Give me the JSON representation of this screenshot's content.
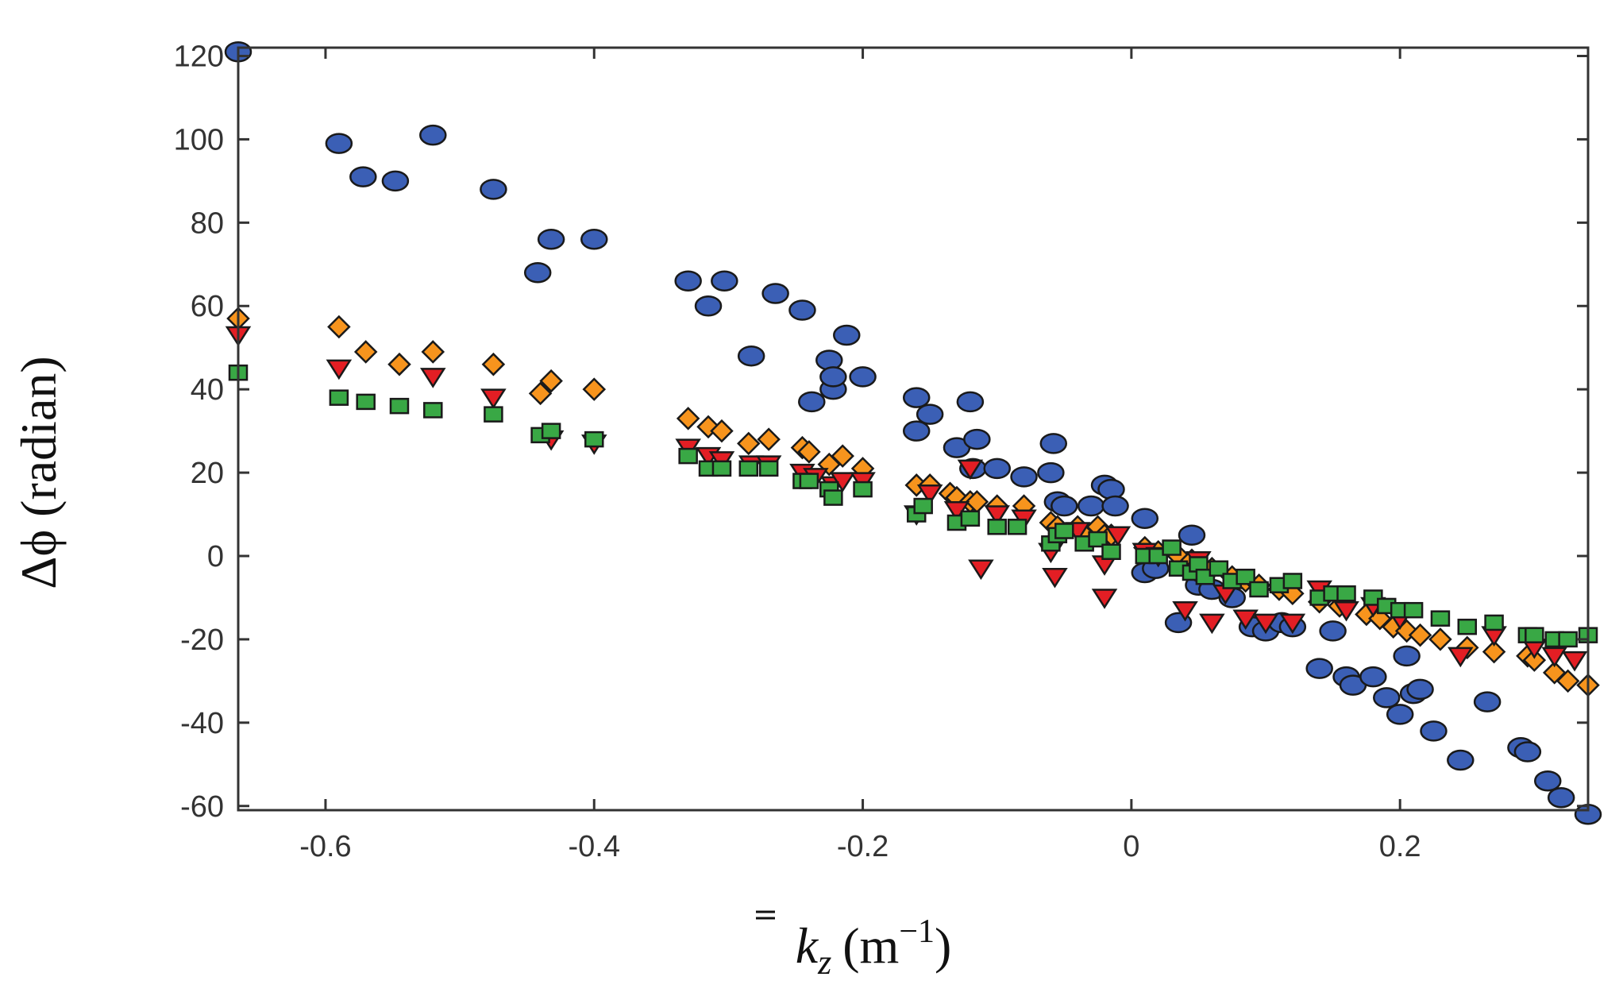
{
  "chart_data": {
    "type": "scatter",
    "title": "",
    "xlabel": "k̄̄z (m⁻¹)",
    "xlabel_parts": {
      "symbol": "k",
      "subscript": "z",
      "unit_open": "(m",
      "exponent": "−1",
      "unit_close": ")"
    },
    "ylabel": "Δϕ (radian)",
    "xlim": [
      -0.665,
      0.34
    ],
    "ylim": [
      -61,
      122
    ],
    "xticks": [
      -0.6,
      -0.4,
      -0.2,
      0,
      0.2
    ],
    "xtick_labels": [
      "-0.6",
      "-0.4",
      "-0.2",
      "0",
      "0.2"
    ],
    "yticks": [
      -60,
      -40,
      -20,
      0,
      20,
      40,
      60,
      80,
      100,
      120
    ],
    "ytick_labels": [
      "-60",
      "-40",
      "-20",
      "0",
      "20",
      "40",
      "60",
      "80",
      "100",
      "120"
    ],
    "grid": false,
    "legend": "none",
    "series": [
      {
        "name": "circle",
        "marker": "circle",
        "color": "#3b5fb5",
        "x": [
          -0.665,
          -0.59,
          -0.572,
          -0.548,
          -0.52,
          -0.475,
          -0.442,
          -0.432,
          -0.4,
          -0.33,
          -0.315,
          -0.303,
          -0.283,
          -0.265,
          -0.245,
          -0.238,
          -0.225,
          -0.222,
          -0.222,
          -0.212,
          -0.2,
          -0.16,
          -0.16,
          -0.15,
          -0.13,
          -0.12,
          -0.115,
          -0.118,
          -0.1,
          -0.08,
          -0.06,
          -0.058,
          -0.055,
          -0.05,
          -0.03,
          -0.02,
          -0.015,
          -0.012,
          0.01,
          0.01,
          0.018,
          0.035,
          0.045,
          0.05,
          0.053,
          0.06,
          0.075,
          0.09,
          0.1,
          0.112,
          0.12,
          0.14,
          0.15,
          0.16,
          0.165,
          0.18,
          0.19,
          0.2,
          0.205,
          0.21,
          0.215,
          0.225,
          0.245,
          0.265,
          0.29,
          0.295,
          0.31,
          0.32,
          0.34
        ],
        "y": [
          121,
          99,
          91,
          90,
          101,
          88,
          68,
          76,
          76,
          66,
          60,
          66,
          48,
          63,
          59,
          37,
          47,
          40,
          43,
          53,
          43,
          38,
          30,
          34,
          26,
          37,
          28,
          21,
          21,
          19,
          20,
          27,
          13,
          12,
          12,
          17,
          16,
          12,
          9,
          -4,
          -3,
          -16,
          5,
          -7,
          -4,
          -8,
          -10,
          -17,
          -18,
          -16,
          -17,
          -27,
          -18,
          -29,
          -31,
          -29,
          -34,
          -38,
          -24,
          -33,
          -32,
          -42,
          -49,
          -35,
          -46,
          -47,
          -54,
          -58,
          -62
        ]
      },
      {
        "name": "diamond",
        "marker": "diamond",
        "color": "#f7941d",
        "x": [
          -0.665,
          -0.59,
          -0.57,
          -0.545,
          -0.52,
          -0.475,
          -0.44,
          -0.432,
          -0.4,
          -0.33,
          -0.315,
          -0.305,
          -0.285,
          -0.27,
          -0.245,
          -0.24,
          -0.225,
          -0.215,
          -0.2,
          -0.16,
          -0.15,
          -0.135,
          -0.13,
          -0.12,
          -0.115,
          -0.1,
          -0.08,
          -0.06,
          -0.055,
          -0.04,
          -0.035,
          -0.025,
          -0.02,
          -0.015,
          0.01,
          0.02,
          0.035,
          0.045,
          0.05,
          0.06,
          0.075,
          0.085,
          0.095,
          0.11,
          0.12,
          0.14,
          0.155,
          0.175,
          0.185,
          0.195,
          0.205,
          0.215,
          0.23,
          0.25,
          0.27,
          0.295,
          0.3,
          0.315,
          0.325,
          0.34
        ],
        "y": [
          57,
          55,
          49,
          46,
          49,
          46,
          39,
          42,
          40,
          33,
          31,
          30,
          27,
          28,
          26,
          25,
          22,
          24,
          21,
          17,
          17,
          15,
          14,
          13,
          13,
          12,
          12,
          8,
          7,
          7,
          5,
          7,
          5,
          5,
          2,
          1,
          0,
          -1,
          -2,
          -3,
          -5,
          -6,
          -7,
          -8,
          -9,
          -11,
          -12,
          -14,
          -15,
          -17,
          -18,
          -19,
          -20,
          -22,
          -23,
          -24,
          -25,
          -28,
          -30,
          -31
        ]
      },
      {
        "name": "triangle-down",
        "marker": "triangle-down",
        "color": "#e31e24",
        "x": [
          -0.665,
          -0.59,
          -0.52,
          -0.475,
          -0.432,
          -0.4,
          -0.33,
          -0.315,
          -0.305,
          -0.283,
          -0.27,
          -0.245,
          -0.235,
          -0.222,
          -0.215,
          -0.2,
          -0.16,
          -0.15,
          -0.13,
          -0.12,
          -0.112,
          -0.1,
          -0.08,
          -0.06,
          -0.057,
          -0.04,
          -0.02,
          -0.02,
          -0.01,
          0.01,
          0.02,
          0.04,
          0.05,
          0.06,
          0.07,
          0.085,
          0.1,
          0.12,
          0.14,
          0.16,
          0.18,
          0.2,
          0.245,
          0.27,
          0.3,
          0.315,
          0.33
        ],
        "y": [
          53,
          45,
          43,
          38,
          28,
          27,
          26,
          24,
          23,
          22,
          22,
          20,
          19,
          17,
          18,
          18,
          10,
          15,
          11,
          21,
          -3,
          10,
          9,
          1,
          -5,
          6,
          -2,
          -10,
          5,
          1,
          0,
          -13,
          -1,
          -16,
          -9,
          -15,
          -16,
          -16,
          -8,
          -13,
          -12,
          -15,
          -24,
          -19,
          -22,
          -24,
          -25
        ]
      },
      {
        "name": "square",
        "marker": "square",
        "color": "#39a845",
        "x": [
          -0.665,
          -0.59,
          -0.57,
          -0.545,
          -0.52,
          -0.475,
          -0.44,
          -0.432,
          -0.4,
          -0.33,
          -0.315,
          -0.305,
          -0.285,
          -0.27,
          -0.245,
          -0.24,
          -0.225,
          -0.222,
          -0.2,
          -0.16,
          -0.155,
          -0.13,
          -0.12,
          -0.1,
          -0.085,
          -0.06,
          -0.055,
          -0.05,
          -0.035,
          -0.025,
          -0.015,
          0.01,
          0.02,
          0.03,
          0.035,
          0.045,
          0.05,
          0.055,
          0.065,
          0.075,
          0.085,
          0.095,
          0.11,
          0.12,
          0.14,
          0.15,
          0.16,
          0.18,
          0.19,
          0.2,
          0.21,
          0.23,
          0.25,
          0.27,
          0.295,
          0.3,
          0.315,
          0.325,
          0.34
        ],
        "y": [
          44,
          38,
          37,
          36,
          35,
          34,
          29,
          30,
          28,
          24,
          21,
          21,
          21,
          21,
          18,
          18,
          16,
          14,
          16,
          10,
          12,
          8,
          9,
          7,
          7,
          3,
          5,
          6,
          3,
          4,
          1,
          0,
          0,
          2,
          -3,
          -4,
          -2,
          -5,
          -3,
          -6,
          -5,
          -8,
          -7,
          -6,
          -10,
          -9,
          -9,
          -10,
          -12,
          -13,
          -13,
          -15,
          -17,
          -16,
          -19,
          -19,
          -20,
          -20,
          -19
        ]
      }
    ]
  }
}
